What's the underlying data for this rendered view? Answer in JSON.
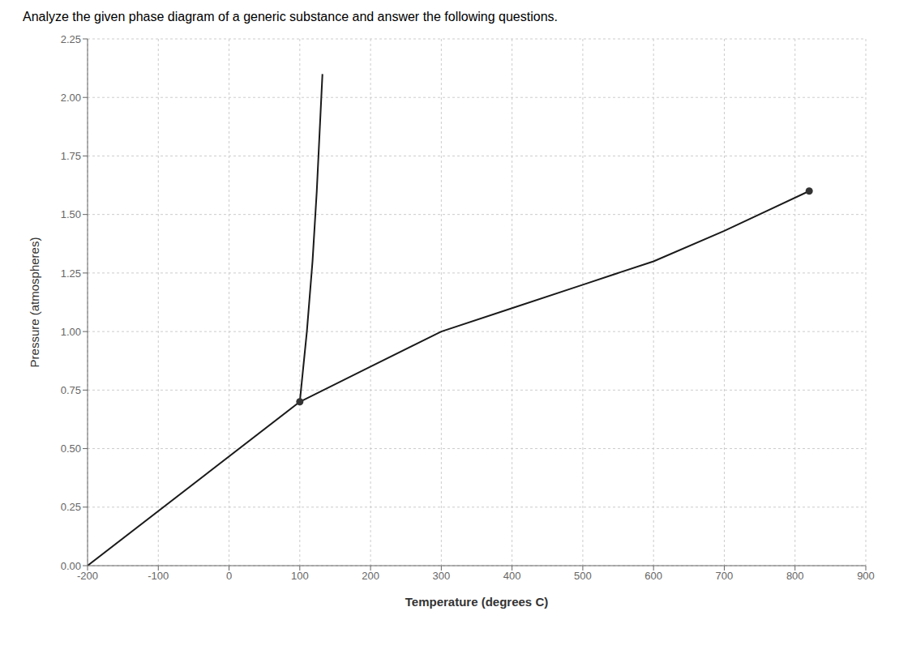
{
  "chart_data": {
    "type": "line",
    "title": "Analyze the given phase diagram of a generic substance and answer the following questions.",
    "x_label": "Temperature (degrees C)",
    "y_label": "Pressure (atmospheres)",
    "xlim": [
      -200,
      900
    ],
    "ylim": [
      0.0,
      2.25
    ],
    "xticks": [
      -200,
      -100,
      0,
      100,
      200,
      300,
      400,
      500,
      600,
      700,
      800,
      900
    ],
    "yticks": [
      {
        "value": 0,
        "label": "0.00"
      },
      0.25,
      {
        "value": 0.5,
        "label": "0.50"
      },
      0.75,
      {
        "value": 1,
        "label": "1.00"
      },
      1.25,
      {
        "value": 1.5,
        "label": "1.50"
      },
      1.75,
      {
        "value": 2,
        "label": "2.00"
      },
      2.25
    ],
    "grid": true,
    "series": [
      {
        "type": "line",
        "marker": "none",
        "color": "#1a1a1a",
        "x": [
          -200,
          100
        ],
        "values": [
          0.0,
          0.7
        ]
      },
      {
        "type": "line",
        "marker": "none",
        "color": "#1a1a1a",
        "x": [
          100,
          200,
          300,
          400,
          500,
          600,
          700,
          820
        ],
        "values": [
          0.7,
          0.85,
          1.0,
          1.1,
          1.2,
          1.3,
          1.43,
          1.6
        ]
      },
      {
        "type": "line",
        "marker": "none",
        "color": "#1a1a1a",
        "x": [
          100,
          110,
          118,
          124,
          128,
          132
        ],
        "values": [
          0.7,
          1.0,
          1.3,
          1.6,
          1.85,
          2.1
        ]
      },
      {
        "type": "scatter",
        "marker": "circle",
        "color": "#333333",
        "x": [
          100,
          820
        ],
        "values": [
          0.7,
          1.6
        ]
      }
    ]
  }
}
